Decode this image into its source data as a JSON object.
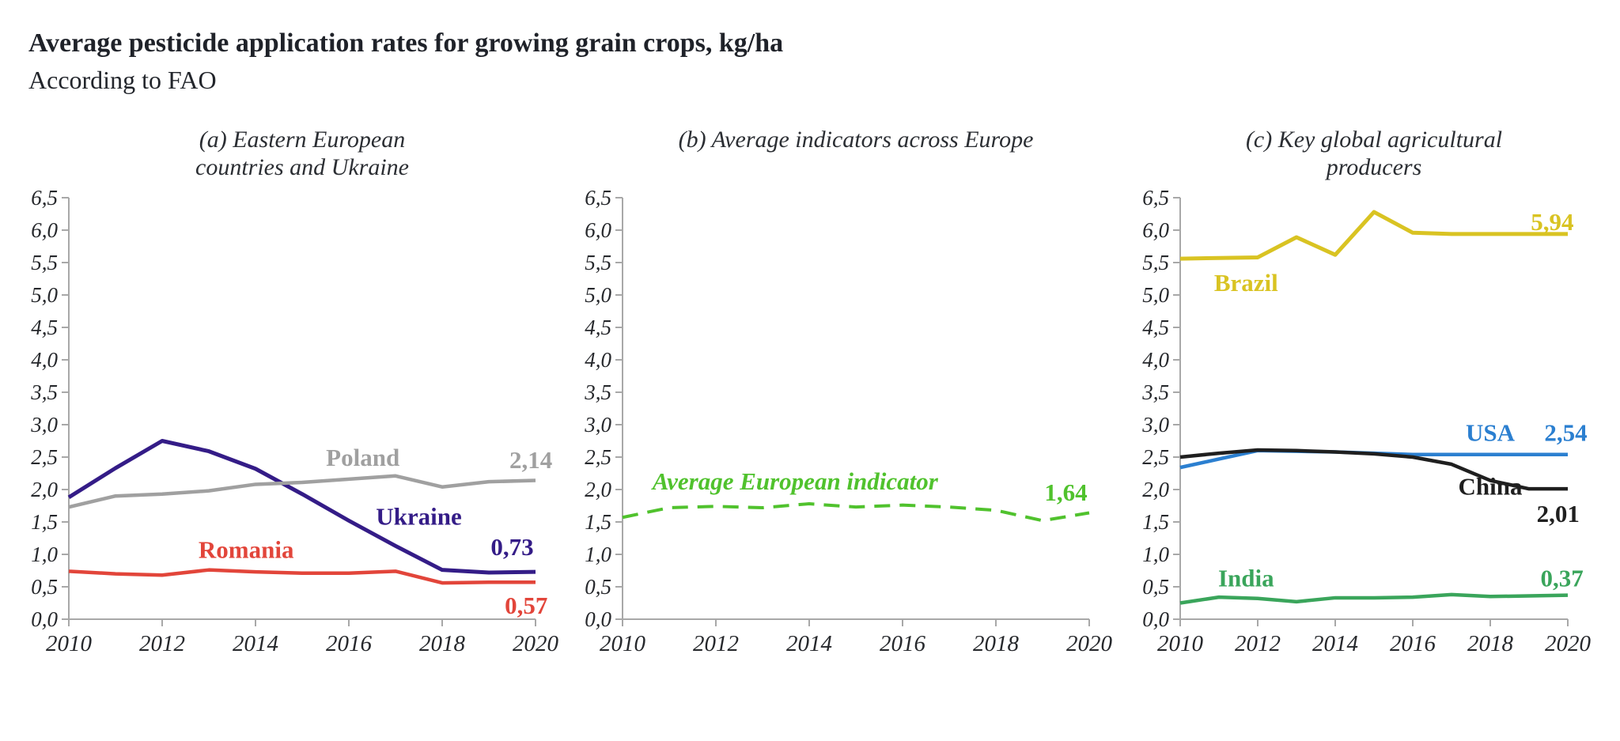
{
  "header": {
    "title": "Average pesticide application rates for growing grain crops, kg/ha",
    "subtitle": "According to FAO"
  },
  "axis": {
    "y_min": 0,
    "y_max": 6.5,
    "y_step": 0.5,
    "x_ticks": [
      2010,
      2012,
      2014,
      2016,
      2018,
      2020
    ],
    "decimal_separator": ",",
    "axis_color": "#a8a8a8",
    "tick_label_color": "#26282c"
  },
  "chart_data": [
    {
      "type": "line",
      "panel": "a",
      "title_lines": [
        "(a) Eastern European",
        "countries and Ukraine"
      ],
      "x": [
        2010,
        2011,
        2012,
        2013,
        2014,
        2015,
        2016,
        2017,
        2018,
        2019,
        2020
      ],
      "x_range": [
        2010,
        2020
      ],
      "y_range": [
        0,
        6.5
      ],
      "series": [
        {
          "name": "Ukraine",
          "color": "#341c87",
          "width": 5,
          "values": [
            1.88,
            2.33,
            2.75,
            2.59,
            2.32,
            1.93,
            1.52,
            1.13,
            0.76,
            0.72,
            0.73
          ],
          "name_label": {
            "text": "Ukraine",
            "x": 2017.5,
            "y": 1.58
          },
          "value_label": {
            "text": "0,73",
            "x": 2019.5,
            "y": 1.11
          }
        },
        {
          "name": "Poland",
          "color": "#a0a0a0",
          "width": 4.5,
          "values": [
            1.73,
            1.9,
            1.93,
            1.98,
            2.08,
            2.11,
            2.16,
            2.21,
            2.04,
            2.12,
            2.14
          ],
          "name_label": {
            "text": "Poland",
            "x": 2016.3,
            "y": 2.49
          },
          "value_label": {
            "text": "2,14",
            "x": 2019.9,
            "y": 2.45
          }
        },
        {
          "name": "Romania",
          "color": "#e2453a",
          "width": 4.5,
          "values": [
            0.74,
            0.7,
            0.68,
            0.76,
            0.73,
            0.71,
            0.71,
            0.74,
            0.56,
            0.57,
            0.57
          ],
          "name_label": {
            "text": "Romania",
            "x": 2013.8,
            "y": 1.07
          },
          "value_label": {
            "text": "0,57",
            "x": 2019.8,
            "y": 0.21
          }
        }
      ]
    },
    {
      "type": "line",
      "panel": "b",
      "title_lines": [
        "(b) Average indicators across Europe"
      ],
      "x": [
        2010,
        2011,
        2012,
        2013,
        2014,
        2015,
        2016,
        2017,
        2018,
        2019,
        2020
      ],
      "x_range": [
        2010,
        2020
      ],
      "y_range": [
        0,
        6.5
      ],
      "series": [
        {
          "name": "Average European indicator",
          "color": "#50c22d",
          "width": 4,
          "dash": "20 12",
          "values": [
            1.57,
            1.72,
            1.74,
            1.72,
            1.78,
            1.73,
            1.76,
            1.73,
            1.68,
            1.52,
            1.64
          ],
          "name_label": {
            "text": "Average European indicator",
            "x": 2013.7,
            "y": 2.12,
            "italic": true
          },
          "value_label": {
            "text": "1,64",
            "x": 2019.5,
            "y": 1.95
          }
        }
      ]
    },
    {
      "type": "line",
      "panel": "c",
      "title_lines": [
        "(c) Key global agricultural",
        "producers"
      ],
      "x": [
        2010,
        2011,
        2012,
        2013,
        2014,
        2015,
        2016,
        2017,
        2018,
        2019,
        2020
      ],
      "x_range": [
        2010,
        2020
      ],
      "y_range": [
        0,
        6.5
      ],
      "series": [
        {
          "name": "Brazil",
          "color": "#d9c322",
          "width": 5,
          "values": [
            5.56,
            5.57,
            5.58,
            5.89,
            5.62,
            6.28,
            5.96,
            5.94,
            5.94,
            5.94,
            5.94
          ],
          "name_label": {
            "text": "Brazil",
            "x": 2011.7,
            "y": 5.18
          },
          "value_label": {
            "text": "5,94",
            "x": 2019.6,
            "y": 6.12
          }
        },
        {
          "name": "USA",
          "color": "#2b7fd0",
          "width": 4.5,
          "values": [
            2.34,
            2.47,
            2.6,
            2.59,
            2.58,
            2.56,
            2.54,
            2.54,
            2.54,
            2.54,
            2.54
          ],
          "name_label": {
            "text": "USA",
            "x": 2018.0,
            "y": 2.87
          },
          "value_label": {
            "text": "2,54",
            "x": 2019.95,
            "y": 2.87
          }
        },
        {
          "name": "China",
          "color": "#1f1f1f",
          "width": 4.5,
          "values": [
            2.5,
            2.56,
            2.61,
            2.6,
            2.58,
            2.55,
            2.5,
            2.39,
            2.14,
            2.01,
            2.01
          ],
          "name_label": {
            "text": "China",
            "x": 2018.0,
            "y": 2.04
          },
          "value_label": {
            "text": "2,01",
            "x": 2019.75,
            "y": 1.62
          }
        },
        {
          "name": "India",
          "color": "#3aa55b",
          "width": 4.5,
          "values": [
            0.25,
            0.34,
            0.32,
            0.27,
            0.33,
            0.33,
            0.34,
            0.38,
            0.35,
            0.36,
            0.37
          ],
          "name_label": {
            "text": "India",
            "x": 2011.7,
            "y": 0.63
          },
          "value_label": {
            "text": "0,37",
            "x": 2019.85,
            "y": 0.63
          }
        }
      ]
    }
  ]
}
